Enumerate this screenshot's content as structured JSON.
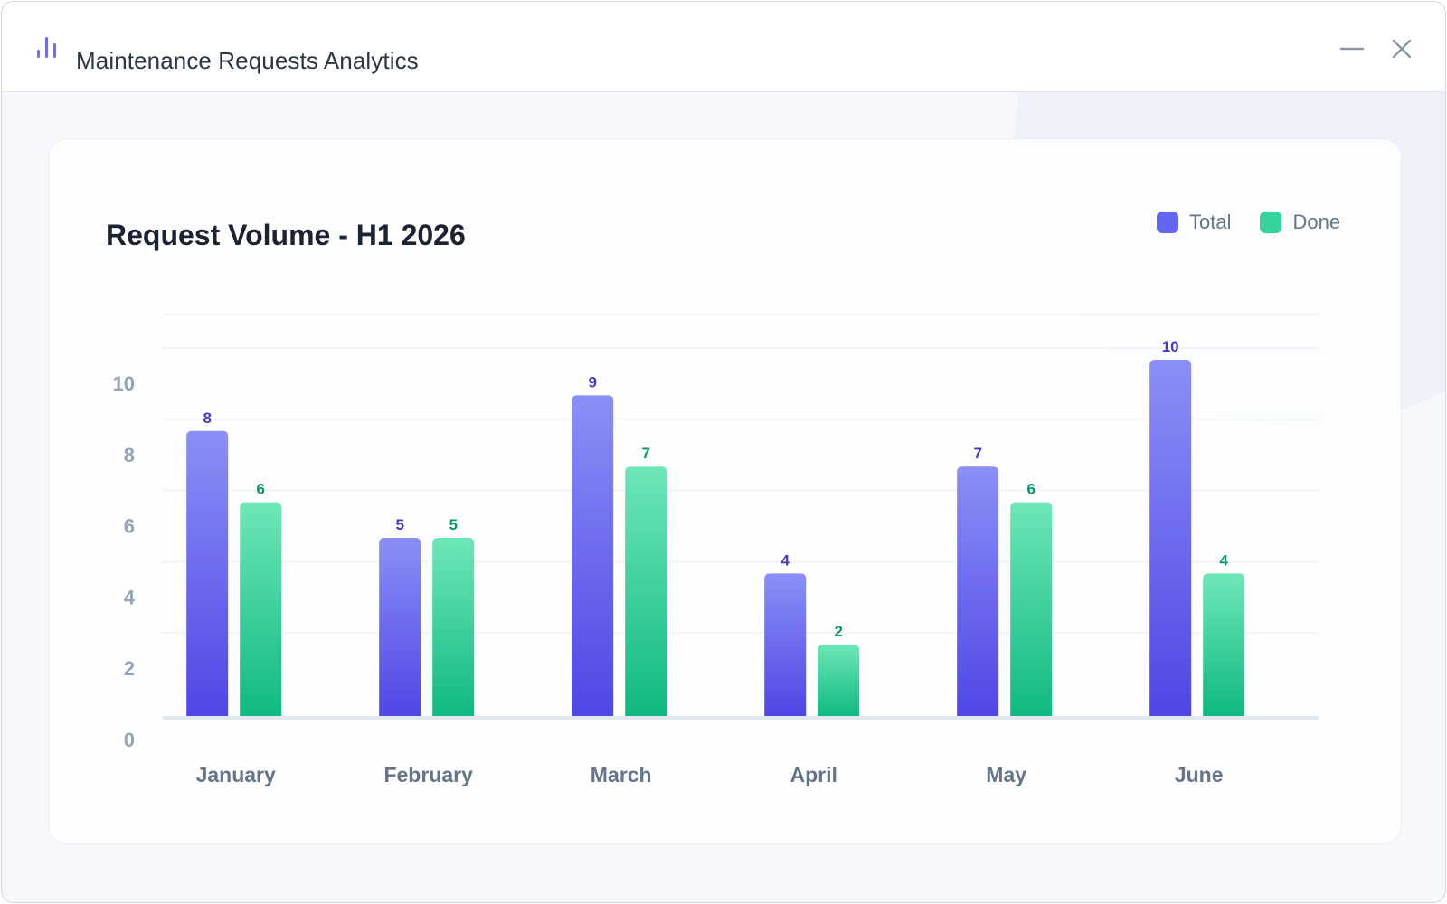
{
  "window": {
    "title": "Maintenance Requests Analytics",
    "app_icon": "bar-chart-icon",
    "controls": [
      "minimize-icon",
      "close-icon"
    ]
  },
  "colors": {
    "total": "#6366f1",
    "done": "#34d399",
    "total_label": "#4338ca",
    "done_label": "#059669",
    "axis_text": "#94a3b8",
    "category_text": "#64748b"
  },
  "chart_data": {
    "type": "bar",
    "title": "Request Volume - H1 2026",
    "categories": [
      "January",
      "February",
      "March",
      "April",
      "May",
      "June"
    ],
    "series": [
      {
        "name": "Total",
        "values": [
          8,
          5,
          9,
          4,
          7,
          10
        ]
      },
      {
        "name": "Done",
        "values": [
          6,
          5,
          7,
          2,
          6,
          4
        ]
      }
    ],
    "ylim": [
      0,
      10
    ],
    "yticks": [
      0,
      2,
      4,
      6,
      8,
      10
    ],
    "grid": true,
    "legend": "top-right",
    "data_labels": true
  }
}
